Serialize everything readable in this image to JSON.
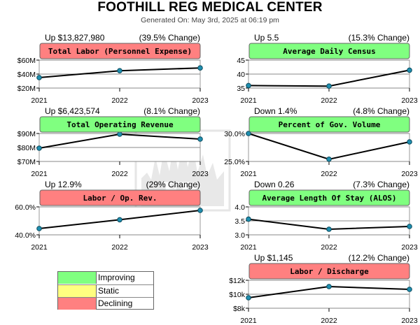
{
  "header": {
    "title": "FOOTHILL REG MEDICAL CENTER",
    "subtitle": "Generated On: May 3rd, 2025 at 06:19 pm"
  },
  "colors": {
    "improving": "#80ff80",
    "static": "#ffff80",
    "declining": "#ff8080",
    "line": "#000000",
    "marker": "#1f8fb0"
  },
  "legend": {
    "items": [
      {
        "label": "Improving",
        "color": "#80ff80"
      },
      {
        "label": "Static",
        "color": "#ffff80"
      },
      {
        "label": "Declining",
        "color": "#ff8080"
      }
    ]
  },
  "chart_data": [
    {
      "type": "line",
      "title": "Total Labor (Personnel Expense)",
      "status": "declining",
      "summary_left": "Up $13,827,980",
      "summary_right": "(39.5% Change)",
      "categories": [
        "2021",
        "2022",
        "2023"
      ],
      "values": [
        35,
        44.8,
        48.8
      ],
      "ylim": [
        20,
        60
      ],
      "yticks": [
        20,
        40,
        60
      ],
      "ytick_labels": [
        "$20M",
        "$40M",
        "$60M"
      ]
    },
    {
      "type": "line",
      "title": "Average Daily Census",
      "status": "improving",
      "summary_left": "Up 5.5",
      "summary_right": "(15.3% Change)",
      "categories": [
        "2021",
        "2022",
        "2023"
      ],
      "values": [
        35.9,
        35.7,
        41.4
      ],
      "ylim": [
        35,
        45
      ],
      "yticks": [
        35,
        40,
        45
      ],
      "ytick_labels": [
        "35",
        "40",
        "45"
      ]
    },
    {
      "type": "line",
      "title": "Total Operating Revenue",
      "status": "improving",
      "summary_left": "Up $6,423,574",
      "summary_right": "(8.1% Change)",
      "categories": [
        "2021",
        "2022",
        "2023"
      ],
      "values": [
        79.5,
        89.5,
        86
      ],
      "ylim": [
        70,
        90
      ],
      "yticks": [
        70,
        80,
        90
      ],
      "ytick_labels": [
        "$70M",
        "$80M",
        "$90M"
      ]
    },
    {
      "type": "line",
      "title": "Percent of Gov. Volume",
      "status": "improving",
      "summary_left": "Down 1.4%",
      "summary_right": "(4.8% Change)",
      "categories": [
        "2021",
        "2022",
        "2023"
      ],
      "values": [
        30,
        25.4,
        28.5
      ],
      "ylim": [
        25,
        30
      ],
      "yticks": [
        25,
        30
      ],
      "ytick_labels": [
        "25.0%",
        "30.0%"
      ]
    },
    {
      "type": "line",
      "title": "Labor / Op. Rev.",
      "status": "declining",
      "summary_left": "Up 12.9%",
      "summary_right": "(29% Change)",
      "categories": [
        "2021",
        "2022",
        "2023"
      ],
      "values": [
        44.5,
        50.8,
        57.5
      ],
      "ylim": [
        40,
        60
      ],
      "yticks": [
        40,
        60
      ],
      "ytick_labels": [
        "40.0%",
        "60.0%"
      ]
    },
    {
      "type": "line",
      "title": "Average Length Of Stay (ALOS)",
      "status": "improving",
      "summary_left": "Down 0.26",
      "summary_right": "(7.3% Change)",
      "categories": [
        "2021",
        "2022",
        "2023"
      ],
      "values": [
        3.56,
        3.2,
        3.3
      ],
      "ylim": [
        3.0,
        4.0
      ],
      "yticks": [
        3.0,
        3.5,
        4.0
      ],
      "ytick_labels": [
        "3.0",
        "3.5",
        "4.0"
      ]
    },
    {
      "type": "line",
      "title": "Labor / Discharge",
      "status": "declining",
      "summary_left": "Up $1,145",
      "summary_right": "(12.2% Change)",
      "categories": [
        "2021",
        "2022",
        "2023"
      ],
      "values": [
        9.5,
        11.1,
        10.7
      ],
      "ylim": [
        8,
        12
      ],
      "yticks": [
        8,
        10,
        12
      ],
      "ytick_labels": [
        "$8k",
        "$10k",
        "$12k"
      ]
    }
  ]
}
